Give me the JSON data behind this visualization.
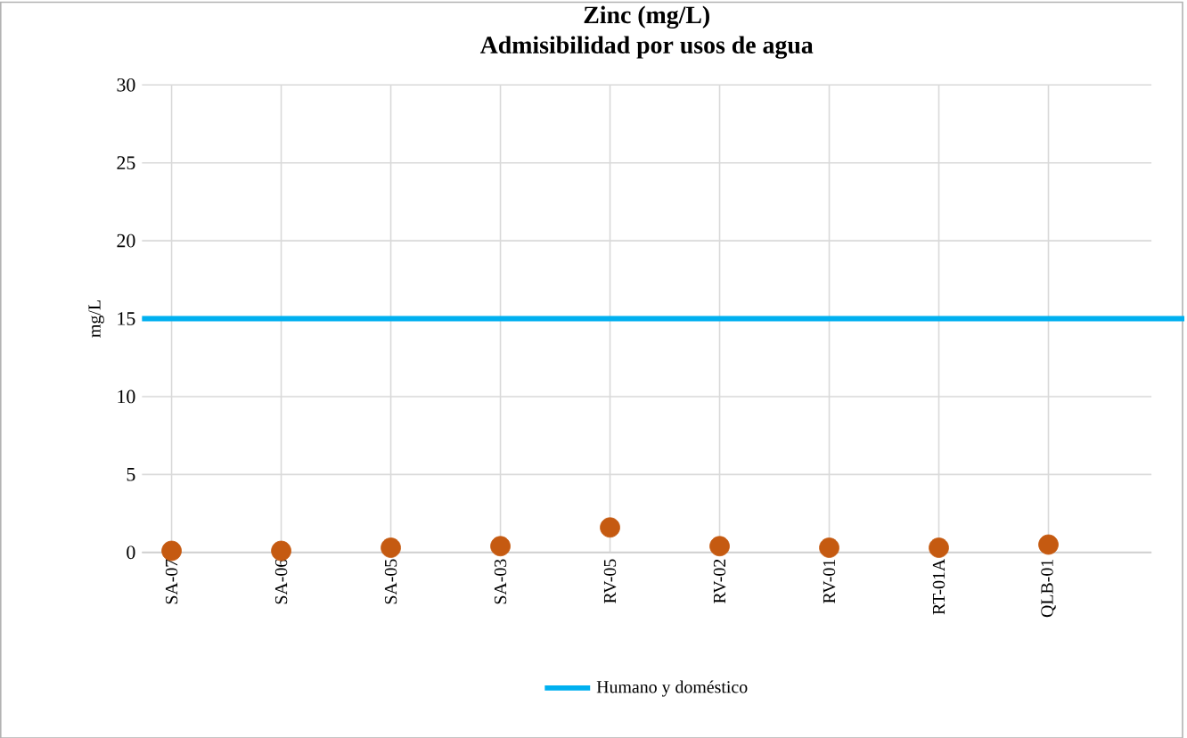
{
  "chart_data": {
    "type": "scatter",
    "title": "Zinc  (mg/L)",
    "subtitle": "Admisibilidad por usos de agua",
    "ylabel": "mg/L",
    "categories": [
      "SA-07",
      "SA-06",
      "SA-05",
      "SA-03",
      "RV-05",
      "RV-02",
      "RV-01",
      "RT-01A",
      "QLB-01"
    ],
    "values": [
      0.1,
      0.1,
      0.3,
      0.4,
      1.6,
      0.4,
      0.3,
      0.3,
      0.5
    ],
    "color": "#c55a11",
    "marker": "circle",
    "grid": true,
    "legend": "bottom",
    "ylim": [
      0,
      30
    ],
    "yticks": [
      0,
      5,
      10,
      15,
      20,
      25,
      30
    ],
    "ref_lines": [
      {
        "axis": "y",
        "value": 15,
        "label": "Humano y doméstico",
        "color": "#00b0f0"
      }
    ]
  }
}
